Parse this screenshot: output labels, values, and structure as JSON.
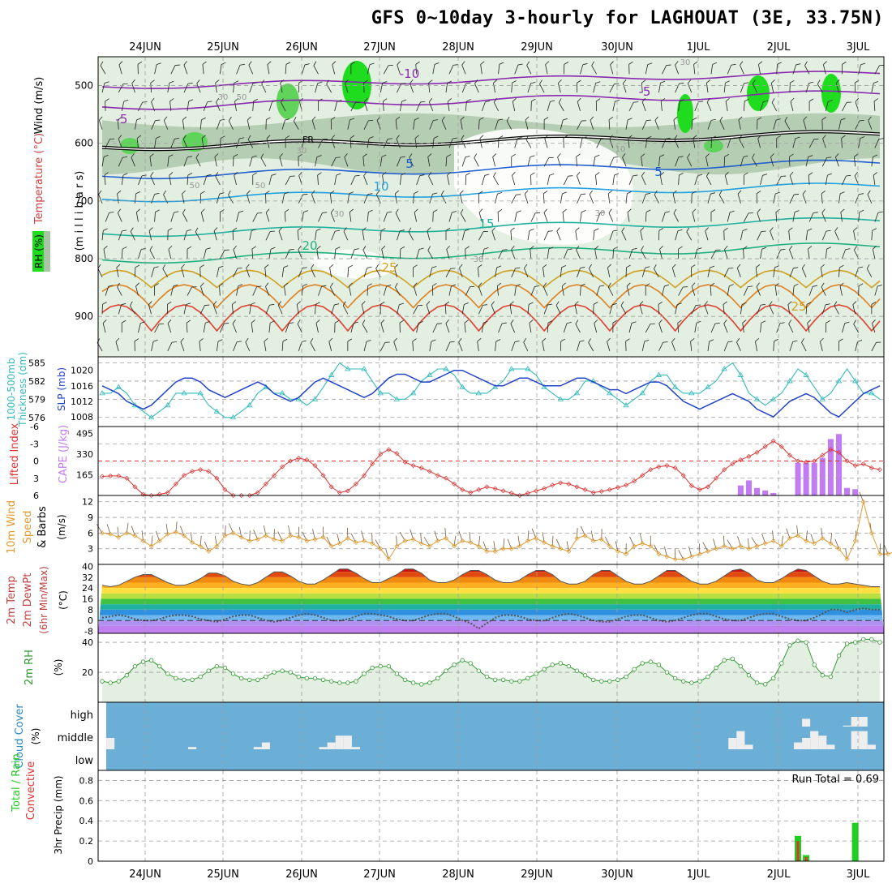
{
  "title": "GFS 0~10day 3-hourly for LAGHOUAT (3E, 33.75N)",
  "dates": [
    "24JUN",
    "25JUN",
    "26JUN",
    "27JUN",
    "28JUN",
    "29JUN",
    "30JUN",
    "1JUL",
    "2JUL",
    "3JUL"
  ],
  "colors": {
    "grid": "#9e9e9e",
    "axis": "#000000",
    "rh_light": "#e3efe0",
    "rh_mid": "#a9c4a6",
    "rh_green": "#5fd35a",
    "rh_bright": "#1fdc1f",
    "cloud_bg": "#6baed6",
    "cloud_fill": "#eeeeee",
    "cape_bar": "#c07cf0",
    "precip_total": "#22cc22",
    "precip_conv": "#dd3333",
    "thickness": "#33bbbb",
    "slp": "#2244cc",
    "li": "#dd3333",
    "wind10m": "#e09a30",
    "rh2m": "#339933"
  },
  "panels": {
    "upper": {
      "left_labels": [
        "Wind (m/s)",
        "Temperature (°C)",
        "RH (%)",
        "(m i l l i b a r s)"
      ],
      "y_ticks": [
        "500",
        "600",
        "700",
        "800",
        "900"
      ],
      "contour_labels": [
        "-10",
        "-5",
        "-5",
        "FR",
        "5",
        "5",
        "10",
        "15",
        "20",
        "25",
        "25",
        "30",
        "30",
        "30",
        "30",
        "10",
        "30",
        "50",
        "50",
        "50",
        "30"
      ]
    },
    "slp": {
      "left_labels": [
        "1000-500mb",
        "Thickness (dm)",
        "SLP (mb)"
      ],
      "left_ticks": [
        "585",
        "582",
        "579",
        "576"
      ],
      "right_ticks": [
        "1020",
        "1016",
        "1012",
        "1008"
      ]
    },
    "cape": {
      "left_labels": [
        "Lifted Index",
        "CAPE (J/kg)"
      ],
      "left_ticks": [
        "-6",
        "-3",
        "0",
        "3",
        "6"
      ],
      "right_ticks": [
        "495",
        "330",
        "165"
      ]
    },
    "wind": {
      "left_labels": [
        "10m Wind",
        "Speed",
        "& Barbs"
      ],
      "unit": "(m/s)",
      "ticks": [
        "12",
        "9",
        "6",
        "3"
      ]
    },
    "temp": {
      "left_labels": [
        "2m Temp",
        "2m DewPt",
        "(6hr Min/Max)"
      ],
      "unit": "(°C)",
      "ticks": [
        "40",
        "32",
        "24",
        "16",
        "8",
        "0",
        "-8"
      ]
    },
    "rh": {
      "left_labels": [
        "2m RH"
      ],
      "unit": "(%)",
      "ticks": [
        "40",
        "20"
      ]
    },
    "cloud": {
      "left_labels": [
        "Cloud Cover"
      ],
      "unit": "(%)",
      "ticks": [
        "high",
        "middle",
        "low"
      ]
    },
    "precip": {
      "left_labels": [
        "Total / Rain",
        "Convective"
      ],
      "unit": "3hr Precip (mm)",
      "ticks": [
        "0.8",
        "0.6",
        "0.4",
        "0.2",
        "0"
      ],
      "run_total": "Run Total = 0.69"
    }
  },
  "chart_data": [
    {
      "type": "line",
      "name": "thickness_slp",
      "series": [
        {
          "name": "1000-500mb Thickness (dm)",
          "values": [
            580,
            580,
            581,
            580,
            578,
            577,
            576,
            577,
            578,
            580,
            580,
            580,
            580,
            578,
            577,
            576,
            576,
            577,
            578,
            580,
            581,
            580,
            580,
            579,
            579,
            578,
            579,
            581,
            583,
            585,
            584,
            584,
            584,
            582,
            580,
            580,
            579,
            579,
            580,
            582,
            583,
            584,
            584,
            583,
            581,
            580,
            580,
            580,
            581,
            582,
            584,
            584,
            584,
            583,
            581,
            580,
            579,
            579,
            580,
            582,
            582,
            581,
            580,
            579,
            578,
            579,
            580,
            582,
            583,
            583,
            581,
            580,
            580,
            580,
            581,
            582,
            584,
            585,
            583,
            580,
            579,
            578,
            579,
            580,
            582,
            584,
            583,
            581,
            579,
            580,
            582,
            584,
            582,
            580,
            580,
            579
          ]
        },
        {
          "name": "SLP (mb)",
          "values": [
            1016,
            1015,
            1014,
            1012,
            1011,
            1010,
            1011,
            1013,
            1015,
            1017,
            1018,
            1018,
            1017,
            1015,
            1014,
            1013,
            1014,
            1015,
            1016,
            1017,
            1016,
            1014,
            1013,
            1012,
            1013,
            1015,
            1017,
            1018,
            1017,
            1016,
            1015,
            1014,
            1013,
            1014,
            1016,
            1018,
            1019,
            1019,
            1018,
            1017,
            1017,
            1018,
            1019,
            1020,
            1020,
            1019,
            1018,
            1017,
            1016,
            1016,
            1017,
            1018,
            1018,
            1017,
            1016,
            1016,
            1016,
            1017,
            1018,
            1018,
            1017,
            1016,
            1015,
            1015,
            1014,
            1015,
            1016,
            1017,
            1017,
            1016,
            1014,
            1012,
            1011,
            1010,
            1011,
            1012,
            1013,
            1014,
            1013,
            1012,
            1010,
            1009,
            1008,
            1010,
            1012,
            1013,
            1014,
            1013,
            1011,
            1009,
            1008,
            1010,
            1012,
            1014,
            1015,
            1016
          ]
        }
      ]
    },
    {
      "type": "bar",
      "name": "cape_li",
      "cape_values": [
        0,
        0,
        0,
        0,
        0,
        0,
        0,
        0,
        0,
        0,
        0,
        0,
        0,
        0,
        0,
        0,
        0,
        0,
        0,
        0,
        0,
        0,
        0,
        0,
        0,
        0,
        0,
        0,
        0,
        0,
        0,
        0,
        0,
        0,
        0,
        0,
        0,
        0,
        0,
        0,
        0,
        0,
        0,
        0,
        0,
        0,
        0,
        0,
        0,
        0,
        0,
        0,
        0,
        0,
        0,
        0,
        0,
        0,
        0,
        0,
        0,
        0,
        0,
        0,
        0,
        0,
        0,
        0,
        0,
        0,
        0,
        0,
        0,
        0,
        0,
        0,
        0,
        0,
        80,
        120,
        60,
        40,
        20,
        0,
        0,
        260,
        260,
        260,
        300,
        450,
        490,
        60,
        50,
        0,
        0,
        0
      ],
      "lifted_index": [
        2.7,
        2.6,
        2.6,
        3,
        4.5,
        5.8,
        6,
        5.8,
        5.5,
        4,
        2.5,
        1.8,
        1.5,
        1.8,
        3,
        5,
        6,
        6,
        6,
        5.5,
        4,
        2.5,
        1,
        0,
        -0.5,
        -0.2,
        0.8,
        2.5,
        4.5,
        5.5,
        5.2,
        4,
        2.5,
        0.5,
        -1.2,
        -2,
        -1.3,
        0.2,
        0.8,
        1.2,
        1.8,
        2.5,
        3,
        4,
        5,
        5.5,
        5,
        4.5,
        4.8,
        5.2,
        5.6,
        6,
        5.6,
        5.2,
        4.8,
        4.2,
        3.8,
        4,
        4.5,
        5,
        5.5,
        5.3,
        5,
        4.6,
        4.2,
        3.5,
        2.5,
        1.5,
        1,
        0.8,
        1.2,
        2.5,
        4.3,
        5,
        4.5,
        3,
        1.5,
        0.5,
        -0.2,
        -0.8,
        -1.5,
        -2.5,
        -3.5,
        -2.5,
        -1,
        0,
        0.2,
        0,
        -1,
        -2,
        -1.5,
        0,
        0.8,
        0.5,
        1.2,
        1.5
      ]
    },
    {
      "type": "line",
      "name": "wind10m",
      "values": [
        6,
        5.8,
        5.2,
        6,
        5.5,
        4.5,
        3.5,
        4.5,
        5.8,
        6.2,
        5.5,
        4.2,
        3.5,
        2.5,
        3.5,
        5.5,
        6,
        5.2,
        4.5,
        4.8,
        5.5,
        4.8,
        4.5,
        5.5,
        5.2,
        4.5,
        4.8,
        5.2,
        3.5,
        4,
        5,
        4.2,
        4.5,
        4,
        3,
        1,
        3.5,
        4.5,
        4.8,
        4,
        3.5,
        4.5,
        5,
        3.5,
        4.5,
        4.2,
        3.5,
        2.5,
        2.5,
        3,
        3,
        3.5,
        4.5,
        5,
        4.2,
        3.5,
        3,
        2.5,
        5,
        5.5,
        4.5,
        4.8,
        3.5,
        2.5,
        2,
        3.5,
        4,
        3.5,
        2,
        1.5,
        1,
        1,
        1.5,
        2,
        2.5,
        3,
        3.5,
        3,
        3.5,
        3,
        3.5,
        4,
        4.5,
        3.5,
        5,
        5.5,
        4.5,
        4,
        5,
        4,
        3,
        1,
        4.5,
        12,
        6,
        2,
        2,
        2.5
      ]
    },
    {
      "type": "area",
      "name": "temp2m",
      "temp": [
        26,
        25,
        26,
        29,
        32,
        34,
        34,
        31,
        28,
        26,
        26,
        28,
        31,
        35,
        35,
        33,
        29,
        27,
        26,
        28,
        32,
        36,
        36,
        33,
        29,
        27,
        27,
        30,
        34,
        38,
        38,
        35,
        31,
        28,
        28,
        31,
        34,
        38,
        38,
        35,
        30,
        28,
        28,
        30,
        34,
        37,
        37,
        34,
        30,
        28,
        28,
        30,
        34,
        37,
        37,
        34,
        29,
        27,
        27,
        29,
        34,
        37,
        37,
        33,
        29,
        27,
        27,
        29,
        33,
        37,
        37,
        33,
        29,
        27,
        27,
        29,
        33,
        37,
        38,
        35,
        30,
        28,
        28,
        31,
        35,
        38,
        37,
        33,
        29,
        27,
        27,
        28,
        27,
        26,
        25,
        25
      ],
      "dewpt": [
        2,
        3,
        4,
        3,
        1,
        0,
        0,
        1,
        3,
        4,
        4,
        3,
        1,
        0,
        -1,
        1,
        3,
        4,
        4,
        2,
        0,
        -1,
        0,
        2,
        4,
        5,
        4,
        2,
        0,
        0,
        1,
        3,
        5,
        5,
        4,
        3,
        1,
        0,
        0,
        2,
        4,
        5,
        5,
        3,
        0,
        -2,
        -6,
        -2,
        2,
        4,
        4,
        3,
        1,
        0,
        0,
        2,
        4,
        5,
        4,
        2,
        0,
        -1,
        -1,
        1,
        3,
        4,
        4,
        2,
        0,
        -1,
        0,
        2,
        4,
        5,
        5,
        3,
        1,
        0,
        0,
        2,
        4,
        5,
        5,
        3,
        1,
        0,
        0,
        2,
        5,
        8,
        8,
        6,
        8,
        9,
        8,
        8
      ]
    },
    {
      "type": "area",
      "name": "rh2m",
      "values": [
        14,
        13,
        14,
        18,
        24,
        27,
        28,
        24,
        19,
        16,
        15,
        15,
        17,
        21,
        24,
        23,
        19,
        16,
        15,
        15,
        17,
        20,
        21,
        20,
        17,
        16,
        16,
        15,
        14,
        13,
        13,
        14,
        19,
        23,
        24,
        24,
        19,
        15,
        13,
        12,
        13,
        16,
        21,
        25,
        28,
        26,
        21,
        17,
        15,
        15,
        14,
        14,
        16,
        19,
        22,
        25,
        26,
        24,
        21,
        18,
        15,
        14,
        14,
        15,
        17,
        22,
        26,
        27,
        25,
        20,
        16,
        14,
        13,
        14,
        17,
        23,
        28,
        29,
        24,
        18,
        13,
        12,
        16,
        26,
        38,
        41,
        40,
        25,
        18,
        17,
        31,
        39,
        40,
        42,
        42,
        40
      ]
    },
    {
      "type": "bar",
      "name": "cloud_cover",
      "high": [
        0,
        0,
        0,
        0,
        0,
        0,
        0,
        0,
        0,
        0,
        0,
        0,
        0,
        0,
        0,
        0,
        0,
        0,
        0,
        0,
        0,
        0,
        0,
        0,
        0,
        0,
        0,
        0,
        0,
        0,
        0,
        0,
        0,
        0,
        0,
        0,
        0,
        0,
        0,
        0,
        0,
        0,
        0,
        0,
        0,
        0,
        0,
        0,
        0,
        0,
        0,
        0,
        0,
        0,
        0,
        0,
        0,
        0,
        0,
        0,
        0,
        0,
        0,
        0,
        0,
        0,
        0,
        0,
        0,
        0,
        0,
        0,
        0,
        0,
        0,
        0,
        0,
        0,
        0,
        0,
        0,
        0,
        0,
        0,
        0,
        0,
        40,
        0,
        0,
        0,
        0,
        5,
        50,
        50,
        0,
        0
      ],
      "middle": [
        0,
        50,
        0,
        0,
        0,
        0,
        0,
        0,
        0,
        0,
        0,
        10,
        0,
        0,
        0,
        0,
        0,
        0,
        0,
        10,
        30,
        0,
        0,
        0,
        0,
        0,
        0,
        10,
        30,
        60,
        60,
        10,
        0,
        0,
        0,
        0,
        0,
        0,
        0,
        0,
        0,
        0,
        0,
        0,
        0,
        0,
        0,
        0,
        0,
        0,
        0,
        0,
        0,
        0,
        0,
        0,
        0,
        0,
        0,
        0,
        0,
        0,
        0,
        0,
        0,
        0,
        0,
        0,
        0,
        0,
        0,
        0,
        0,
        0,
        0,
        0,
        0,
        50,
        80,
        20,
        0,
        0,
        0,
        0,
        0,
        30,
        50,
        80,
        60,
        20,
        0,
        0,
        80,
        80,
        20,
        0
      ]
    },
    {
      "type": "bar",
      "name": "precip3hr",
      "total": [
        0,
        0,
        0,
        0,
        0,
        0,
        0,
        0,
        0,
        0,
        0,
        0,
        0,
        0,
        0,
        0,
        0,
        0,
        0,
        0,
        0,
        0,
        0,
        0,
        0,
        0,
        0,
        0,
        0,
        0,
        0,
        0,
        0,
        0,
        0,
        0,
        0,
        0,
        0,
        0,
        0,
        0,
        0,
        0,
        0,
        0,
        0,
        0,
        0,
        0,
        0,
        0,
        0,
        0,
        0,
        0,
        0,
        0,
        0,
        0,
        0,
        0,
        0,
        0,
        0,
        0,
        0,
        0,
        0,
        0,
        0,
        0,
        0,
        0,
        0,
        0,
        0,
        0,
        0,
        0,
        0,
        0,
        0,
        0,
        0,
        0.25,
        0.06,
        0,
        0,
        0,
        0,
        0,
        0.38,
        0,
        0,
        0
      ],
      "convective": [
        0,
        0,
        0,
        0,
        0,
        0,
        0,
        0,
        0,
        0,
        0,
        0,
        0,
        0,
        0,
        0,
        0,
        0,
        0,
        0,
        0,
        0,
        0,
        0,
        0,
        0,
        0,
        0,
        0,
        0,
        0,
        0,
        0,
        0,
        0,
        0,
        0,
        0,
        0,
        0,
        0,
        0,
        0,
        0,
        0,
        0,
        0,
        0,
        0,
        0,
        0,
        0,
        0,
        0,
        0,
        0,
        0,
        0,
        0,
        0,
        0,
        0,
        0,
        0,
        0,
        0,
        0,
        0,
        0,
        0,
        0,
        0,
        0,
        0,
        0,
        0,
        0,
        0,
        0,
        0,
        0,
        0,
        0,
        0,
        0,
        0.2,
        0.04,
        0,
        0,
        0,
        0,
        0,
        0,
        0,
        0,
        0
      ]
    }
  ]
}
